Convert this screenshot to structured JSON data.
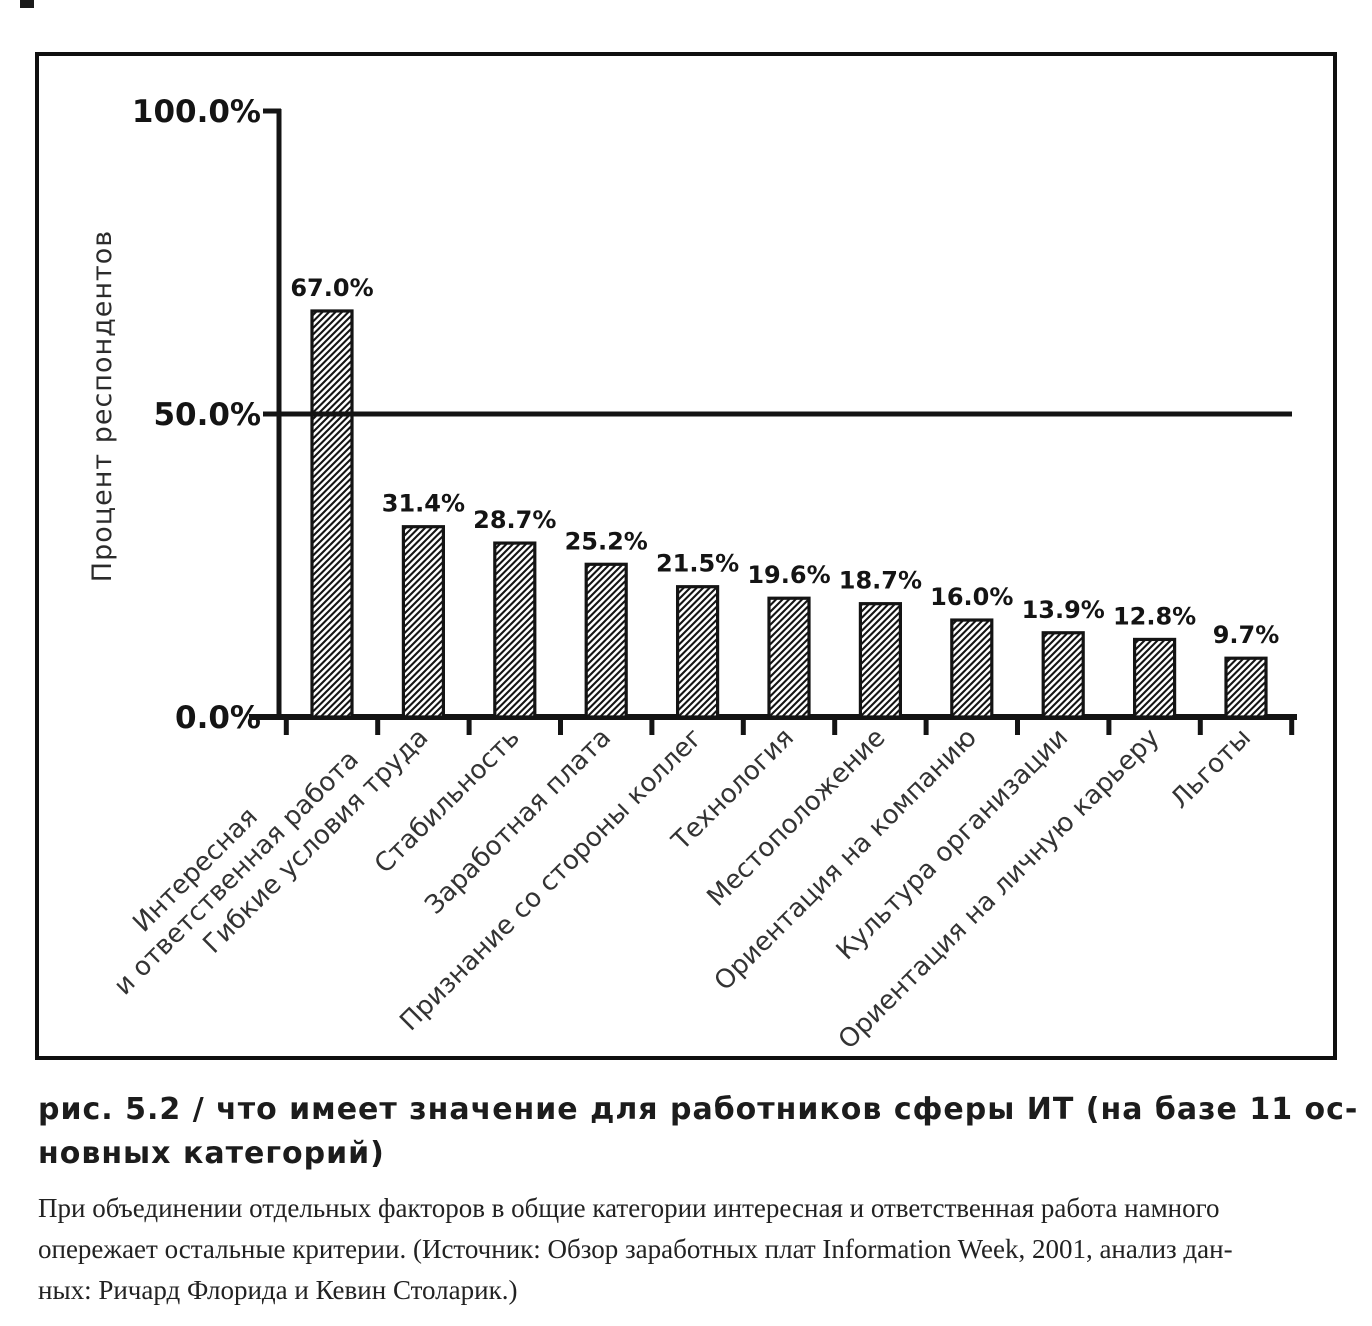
{
  "figure": {
    "caption": {
      "title": "рис. 5.2 / что имеет значение для работников сферы ИТ (на базе 11 ос-\nновных категорий)",
      "body": "При объединении отдельных факторов в общие категории интересная и ответственная работа намного\nопережает остальные критерии. (Источник: Обзор заработных плат Information Week, 2001, анализ дан-\nных: Ричард Флорида и Кевин Столарик.)"
    }
  },
  "chart_data": {
    "type": "bar",
    "title": "",
    "xlabel": "",
    "ylabel": "Процент респондентов",
    "ylim": [
      0,
      100
    ],
    "grid": "off",
    "legend": "none",
    "reference_line_value": 50,
    "y_ticks": [
      {
        "value": 100,
        "label": "100.0%"
      },
      {
        "value": 50,
        "label": "50.0%"
      },
      {
        "value": 0,
        "label": "0.0%"
      }
    ],
    "bar_style": {
      "fill": "diagonal-hatch",
      "ink_color": "#141414",
      "background": "#ffffff"
    },
    "categories": [
      "Интересная\nи ответственная работа",
      "Гибкие условия труда",
      "Стабильность",
      "Заработная плата",
      "Признание со стороны коллег",
      "Технология",
      "Местоположение",
      "Ориентация на компанию",
      "Культура организации",
      "Ориентация на личную карьеру",
      "Льготы"
    ],
    "values": [
      67.0,
      31.4,
      28.7,
      25.2,
      21.5,
      19.6,
      18.7,
      16.0,
      13.9,
      12.8,
      9.7
    ],
    "value_labels": [
      "67.0%",
      "31.4%",
      "28.7%",
      "25.2%",
      "21.5%",
      "19.6%",
      "18.7%",
      "16.0%",
      "13.9%",
      "12.8%",
      "9.7%"
    ]
  }
}
